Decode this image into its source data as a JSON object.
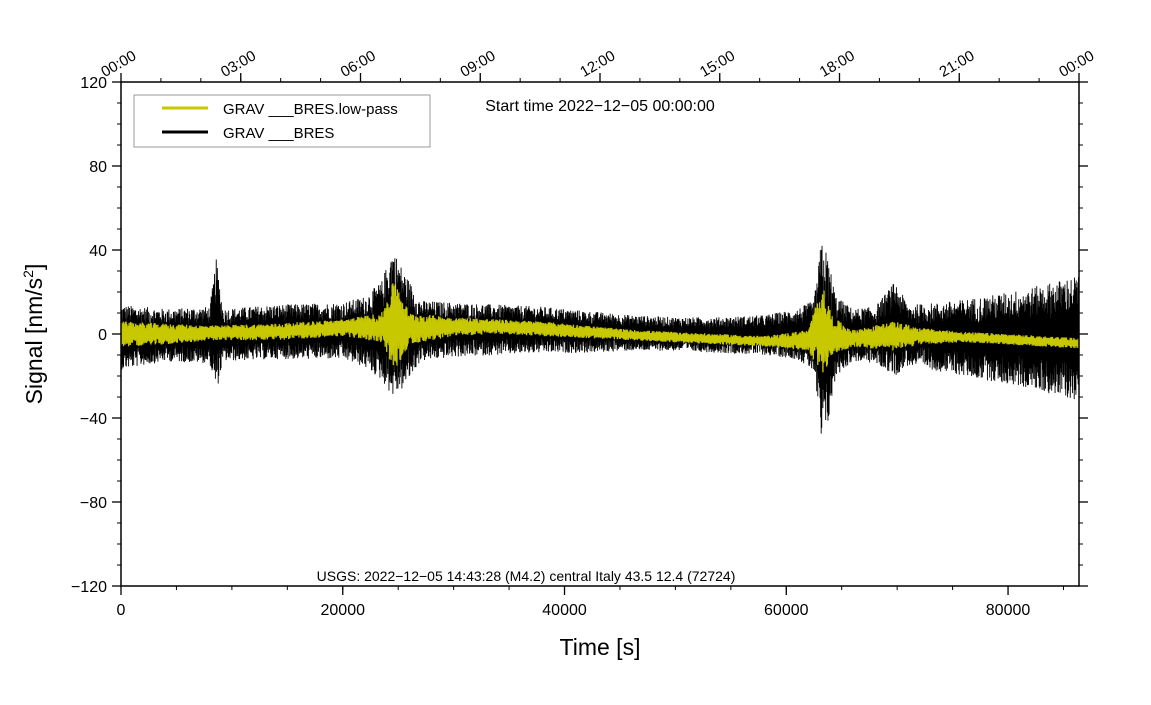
{
  "chart_data": {
    "type": "line",
    "xlabel": "Time [s]",
    "ylabel": "Signal [nm/s",
    "ylabel_sup": "2",
    "ylabel_tail": "]",
    "xlim": [
      0,
      86400
    ],
    "ylim": [
      -120,
      120
    ],
    "x_ticks": [
      0,
      20000,
      40000,
      60000,
      80000
    ],
    "x_tick_labels": [
      "0",
      "20000",
      "40000",
      "60000",
      "80000"
    ],
    "y_ticks": [
      -120,
      -80,
      -40,
      0,
      40,
      80,
      120
    ],
    "y_tick_labels": [
      "−120",
      "−80",
      "−40",
      "0",
      "40",
      "80",
      "120"
    ],
    "top_axis": {
      "ticks": [
        0,
        10800,
        21600,
        32400,
        43200,
        54000,
        64800,
        75600,
        86400
      ],
      "labels": [
        "00:00",
        "03:00",
        "06:00",
        "09:00",
        "12:00",
        "15:00",
        "18:00",
        "21:00",
        "00:00"
      ]
    },
    "annotation_top": "Start time 2022−12−05 00:00:00",
    "annotation_bottom": "USGS: 2022−12−05 14:43:28 (M4.2) central Italy 43.5 12.4 (72724)",
    "grid": false,
    "legend_position": "top-left",
    "series": [
      {
        "name": "GRAV ___BRES",
        "color": "#000000",
        "envelope": {
          "x": [
            0,
            4000,
            8000,
            8600,
            9200,
            14000,
            20000,
            22000,
            23500,
            24500,
            25500,
            27000,
            30000,
            34000,
            38000,
            42000,
            46000,
            50000,
            54000,
            58000,
            61000,
            62500,
            63200,
            63700,
            64500,
            66000,
            68000,
            69800,
            71000,
            74000,
            78000,
            82000,
            86400
          ],
          "upper": [
            14,
            12,
            13,
            36,
            12,
            14,
            15,
            18,
            25,
            41,
            30,
            16,
            15,
            14,
            13,
            11,
            9,
            8,
            8,
            9,
            12,
            16,
            46,
            38,
            18,
            12,
            13,
            25,
            14,
            15,
            18,
            22,
            28
          ],
          "lower": [
            -17,
            -13,
            -14,
            -28,
            -13,
            -12,
            -12,
            -16,
            -22,
            -30,
            -26,
            -13,
            -11,
            -10,
            -9,
            -9,
            -8,
            -8,
            -9,
            -10,
            -12,
            -18,
            -55,
            -45,
            -20,
            -13,
            -14,
            -20,
            -15,
            -18,
            -22,
            -26,
            -32
          ]
        }
      },
      {
        "name": "GRAV ___BRES.low-pass",
        "color": "#c8c800",
        "envelope": {
          "x": [
            0,
            4000,
            8000,
            14000,
            20000,
            23500,
            24700,
            26000,
            30000,
            34000,
            38000,
            42000,
            46000,
            50000,
            54000,
            58000,
            62000,
            63200,
            64200,
            66000,
            69800,
            72000,
            76000,
            80000,
            86400
          ],
          "upper": [
            6,
            5,
            4,
            5,
            7,
            10,
            27,
            10,
            8,
            7,
            6,
            4,
            2,
            1,
            0,
            -1,
            2,
            24,
            8,
            2,
            6,
            3,
            1,
            0,
            -2
          ],
          "lower": [
            -6,
            -5,
            -3,
            -3,
            -1,
            -4,
            -18,
            -5,
            -1,
            0,
            -1,
            -2,
            -3,
            -4,
            -5,
            -6,
            -8,
            -20,
            -10,
            -6,
            -8,
            -5,
            -4,
            -5,
            -7
          ]
        }
      }
    ]
  }
}
